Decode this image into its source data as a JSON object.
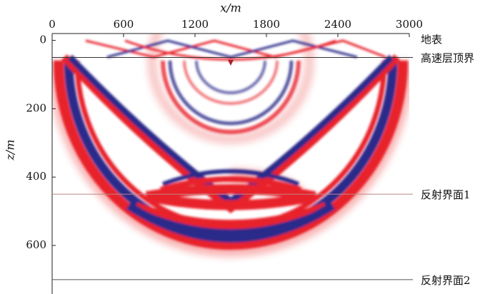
{
  "chart_data": {
    "type": "wavefield",
    "xlabel": "x/m",
    "ylabel": "z/m",
    "xlim": [
      0,
      3000
    ],
    "ylim": [
      -20,
      740
    ],
    "xticks": [
      0,
      600,
      1200,
      1800,
      2400,
      3000
    ],
    "yticks": [
      0,
      200,
      400,
      600
    ],
    "interfaces": [
      {
        "label": "地表",
        "z": 0
      },
      {
        "label": "高速层顶界",
        "z": 50
      },
      {
        "label": "反射界面1",
        "z": 450
      },
      {
        "label": "反射界面2",
        "z": 700
      }
    ]
  }
}
